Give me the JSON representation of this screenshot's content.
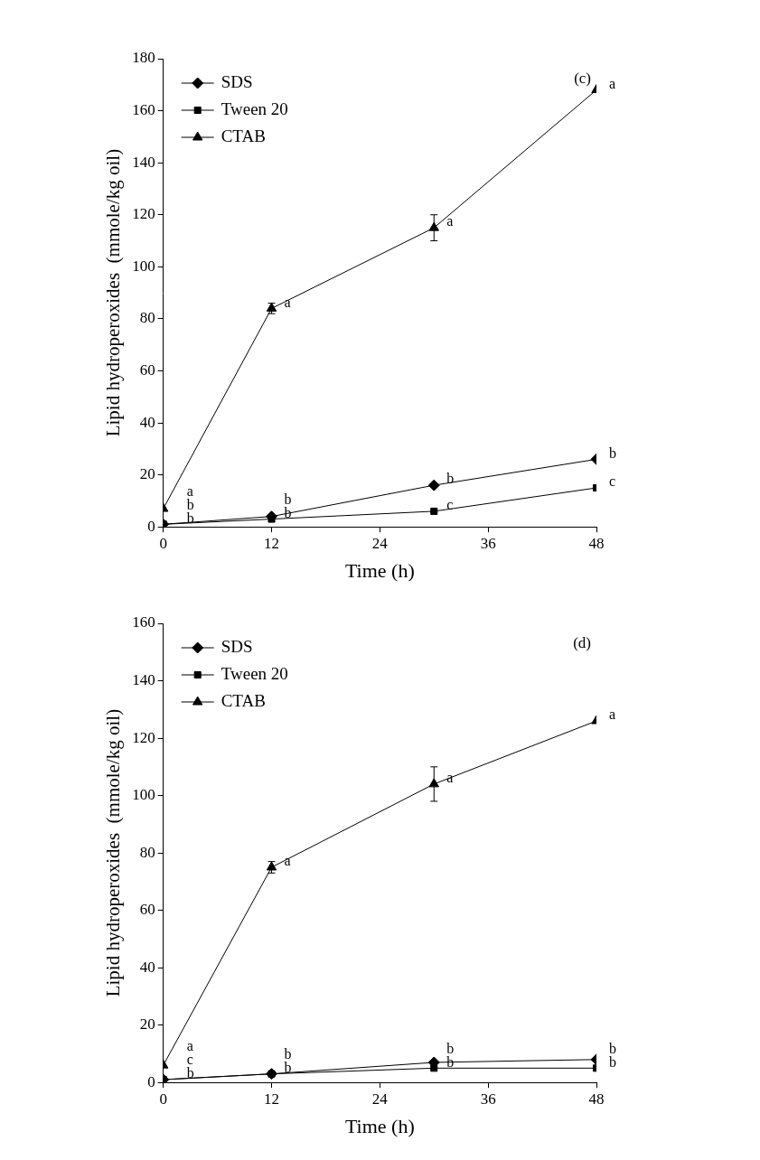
{
  "chart_data": [
    {
      "type": "line",
      "title": "(c)",
      "x_label": "Time (h)",
      "y_label": "Lipid hydroperoxides  (mmole/kg oil)",
      "x": [
        0,
        12,
        30,
        48
      ],
      "series": [
        {
          "name": "SDS",
          "color": "#000000",
          "marker": "diamond",
          "values": [
            1,
            4,
            16,
            26
          ],
          "errors": [
            null,
            null,
            null,
            null
          ],
          "significance": [
            "b",
            "b",
            "b",
            "b"
          ]
        },
        {
          "name": "Tween 20",
          "color": "#000000",
          "marker": "square",
          "values": [
            1,
            3,
            6,
            15
          ],
          "errors": [
            null,
            null,
            null,
            null
          ],
          "significance": [
            "b",
            "b",
            "c",
            "c"
          ]
        },
        {
          "name": "CTAB",
          "color": "#000000",
          "marker": "triangle",
          "values": [
            7,
            84,
            115,
            168
          ],
          "errors": [
            null,
            2,
            5,
            null
          ],
          "significance": [
            "a",
            "a",
            "a",
            "a"
          ]
        }
      ],
      "xlim": [
        0,
        48
      ],
      "xticks": [
        0,
        12,
        24,
        36,
        48
      ],
      "ylim": [
        0,
        180
      ],
      "yticks": [
        0,
        20,
        40,
        60,
        80,
        100,
        120,
        140,
        160,
        180
      ],
      "grid": false,
      "legend": "upper left"
    },
    {
      "type": "line",
      "title": "(d)",
      "x_label": "Time (h)",
      "y_label": "Lipid hydroperoxides  (mmole/kg oil)",
      "x": [
        0,
        12,
        30,
        48
      ],
      "series": [
        {
          "name": "SDS",
          "color": "#000000",
          "marker": "diamond",
          "values": [
            1,
            3,
            7,
            8
          ],
          "errors": [
            null,
            null,
            null,
            null
          ],
          "significance": [
            "b",
            "b",
            "b",
            "b"
          ]
        },
        {
          "name": "Tween 20",
          "color": "#000000",
          "marker": "square",
          "values": [
            1,
            3,
            5,
            5
          ],
          "errors": [
            null,
            null,
            null,
            null
          ],
          "significance": [
            "c",
            "b",
            "b",
            "b"
          ]
        },
        {
          "name": "CTAB",
          "color": "#000000",
          "marker": "triangle",
          "values": [
            6,
            75,
            104,
            126
          ],
          "errors": [
            null,
            2,
            6,
            null
          ],
          "significance": [
            "a",
            "a",
            "a",
            "a"
          ]
        }
      ],
      "xlim": [
        0,
        48
      ],
      "xticks": [
        0,
        12,
        24,
        36,
        48
      ],
      "ylim": [
        0,
        160
      ],
      "yticks": [
        0,
        20,
        40,
        60,
        80,
        100,
        120,
        140,
        160
      ],
      "grid": false,
      "legend": "upper left"
    }
  ]
}
